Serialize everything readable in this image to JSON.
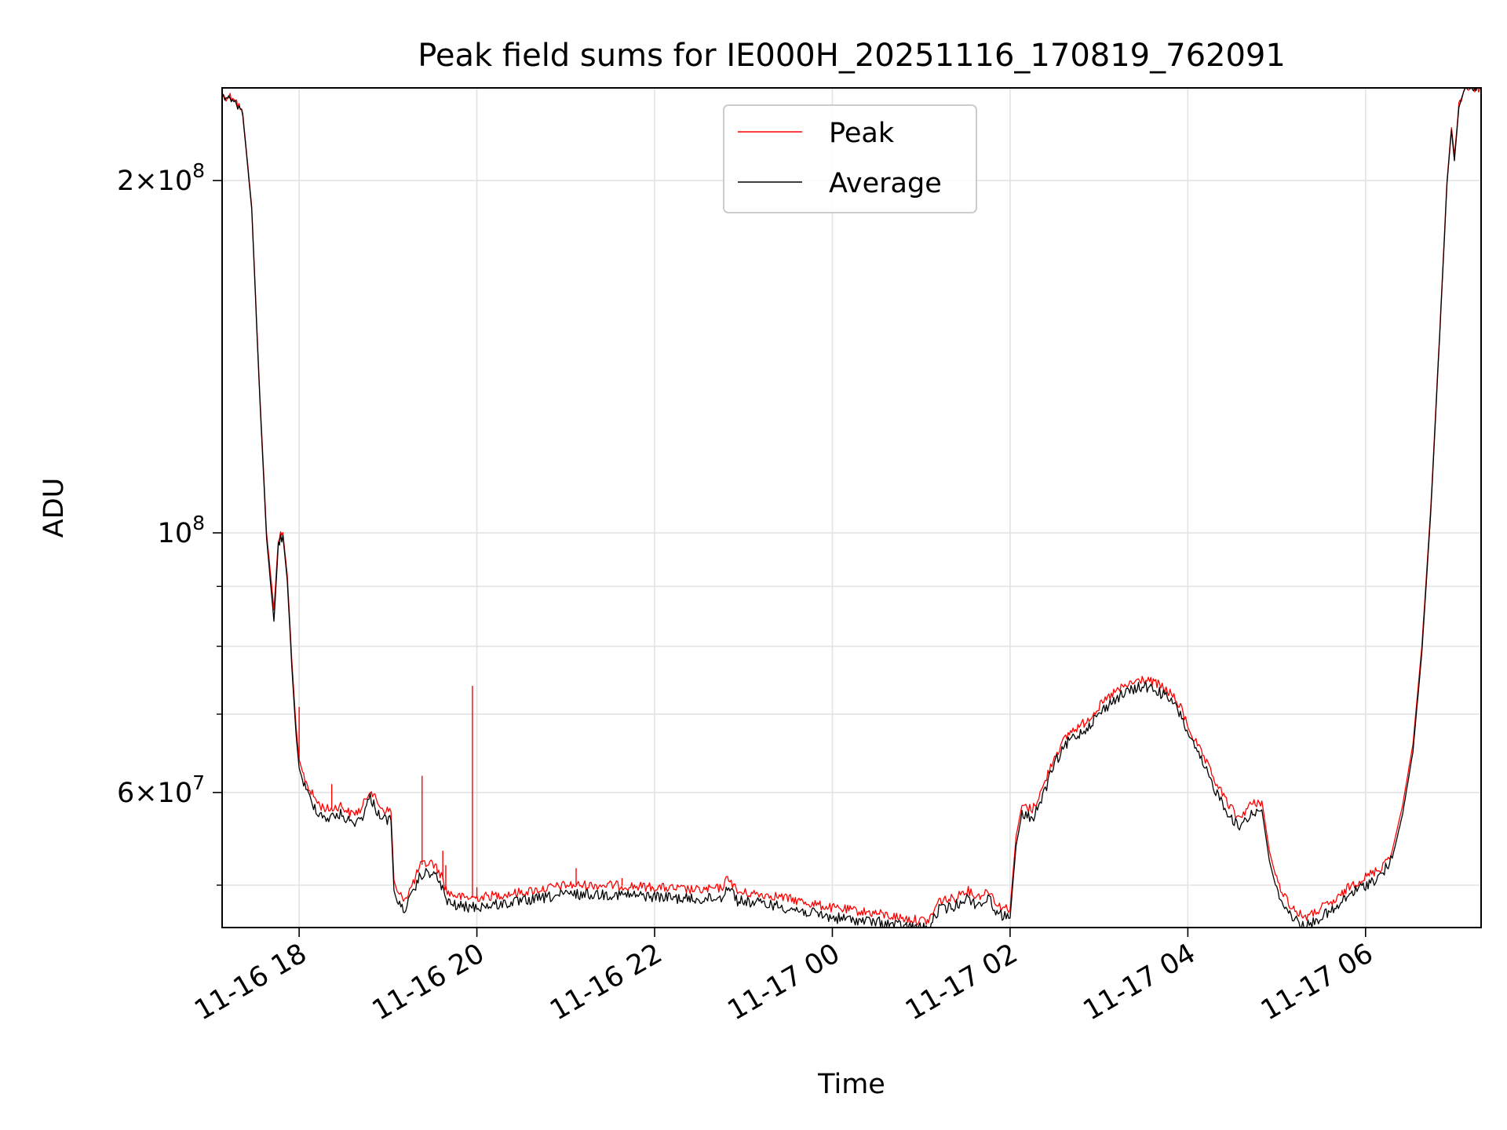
{
  "chart_data": {
    "type": "line",
    "title": "Peak field sums for IE000H_20251116_170819_762091",
    "xlabel": "Time",
    "ylabel": "ADU",
    "y_scale": "log",
    "grid": true,
    "legend_position": "upper-center",
    "xlim": [
      "2025-11-16 17:08",
      "2025-11-17 07:18"
    ],
    "ylim": [
      46000000,
      240000000
    ],
    "x_ticks": [
      {
        "value": "2025-11-16 18:00",
        "label": "11-16 18"
      },
      {
        "value": "2025-11-16 20:00",
        "label": "11-16 20"
      },
      {
        "value": "2025-11-16 22:00",
        "label": "11-16 22"
      },
      {
        "value": "2025-11-17 00:00",
        "label": "11-17 00"
      },
      {
        "value": "2025-11-17 02:00",
        "label": "11-17 02"
      },
      {
        "value": "2025-11-17 04:00",
        "label": "11-17 04"
      },
      {
        "value": "2025-11-17 06:00",
        "label": "11-17 06"
      }
    ],
    "y_ticks": [
      {
        "value": 60000000,
        "base": "6",
        "exponent": "7"
      },
      {
        "value": 100000000,
        "base": "",
        "exponent": "8"
      },
      {
        "value": 200000000,
        "base": "2",
        "exponent": "8"
      }
    ],
    "y_minor_ticks": [
      50000000,
      70000000,
      80000000,
      90000000
    ],
    "series": [
      {
        "name": "Peak",
        "color": "#ff0000",
        "points": [
          [
            "2025-11-16 17:08",
            236000000
          ],
          [
            "2025-11-16 17:16",
            236000000
          ],
          [
            "2025-11-16 17:22",
            228000000
          ],
          [
            "2025-11-16 17:28",
            190000000
          ],
          [
            "2025-11-16 17:33",
            135000000
          ],
          [
            "2025-11-16 17:38",
            100000000
          ],
          [
            "2025-11-16 17:43",
            86000000
          ],
          [
            "2025-11-16 17:46",
            99000000
          ],
          [
            "2025-11-16 17:49",
            100000000
          ],
          [
            "2025-11-16 17:52",
            92000000
          ],
          [
            "2025-11-16 17:55",
            78000000
          ],
          [
            "2025-11-16 17:58",
            68000000
          ],
          [
            "2025-11-16 18:00",
            64000000
          ],
          [
            "2025-11-16 18:03",
            62000000
          ],
          [
            "2025-11-16 18:08",
            60000000
          ],
          [
            "2025-11-16 18:14",
            58500000
          ],
          [
            "2025-11-16 18:20",
            58000000
          ],
          [
            "2025-11-16 18:28",
            58500000
          ],
          [
            "2025-11-16 18:35",
            57500000
          ],
          [
            "2025-11-16 18:42",
            58000000
          ],
          [
            "2025-11-16 18:48",
            60500000
          ],
          [
            "2025-11-16 18:52",
            59000000
          ],
          [
            "2025-11-16 18:57",
            58000000
          ],
          [
            "2025-11-16 19:02",
            57800000
          ],
          [
            "2025-11-16 19:04",
            50500000
          ],
          [
            "2025-11-16 19:07",
            49000000
          ],
          [
            "2025-11-16 19:12",
            48800000
          ],
          [
            "2025-11-16 19:17",
            50200000
          ],
          [
            "2025-11-16 19:22",
            52000000
          ],
          [
            "2025-11-16 19:30",
            52300000
          ],
          [
            "2025-11-16 19:36",
            51000000
          ],
          [
            "2025-11-16 19:40",
            49300000
          ],
          [
            "2025-11-16 19:50",
            48800000
          ],
          [
            "2025-11-16 20:00",
            48800000
          ],
          [
            "2025-11-16 20:30",
            49300000
          ],
          [
            "2025-11-16 21:00",
            50000000
          ],
          [
            "2025-11-16 21:30",
            50000000
          ],
          [
            "2025-11-16 22:00",
            49800000
          ],
          [
            "2025-11-16 22:30",
            49500000
          ],
          [
            "2025-11-16 22:45",
            49700000
          ],
          [
            "2025-11-16 22:50",
            50800000
          ],
          [
            "2025-11-16 22:56",
            49300000
          ],
          [
            "2025-11-16 23:20",
            49000000
          ],
          [
            "2025-11-16 23:40",
            48400000
          ],
          [
            "2025-11-17 00:00",
            47800000
          ],
          [
            "2025-11-17 00:30",
            47300000
          ],
          [
            "2025-11-17 00:50",
            46800000
          ],
          [
            "2025-11-17 01:05",
            46600000
          ],
          [
            "2025-11-17 01:12",
            48500000
          ],
          [
            "2025-11-17 01:22",
            48700000
          ],
          [
            "2025-11-17 01:30",
            49600000
          ],
          [
            "2025-11-17 01:38",
            48900000
          ],
          [
            "2025-11-17 01:46",
            49500000
          ],
          [
            "2025-11-17 01:52",
            48000000
          ],
          [
            "2025-11-17 02:00",
            47700000
          ],
          [
            "2025-11-17 02:04",
            55000000
          ],
          [
            "2025-11-17 02:08",
            58500000
          ],
          [
            "2025-11-17 02:15",
            58000000
          ],
          [
            "2025-11-17 02:22",
            60500000
          ],
          [
            "2025-11-17 02:30",
            64500000
          ],
          [
            "2025-11-17 02:40",
            67500000
          ],
          [
            "2025-11-17 02:50",
            68800000
          ],
          [
            "2025-11-17 03:00",
            71000000
          ],
          [
            "2025-11-17 03:10",
            73000000
          ],
          [
            "2025-11-17 03:20",
            74200000
          ],
          [
            "2025-11-17 03:30",
            75000000
          ],
          [
            "2025-11-17 03:40",
            74200000
          ],
          [
            "2025-11-17 03:48",
            73000000
          ],
          [
            "2025-11-17 03:55",
            71000000
          ],
          [
            "2025-11-17 04:02",
            67500000
          ],
          [
            "2025-11-17 04:10",
            64500000
          ],
          [
            "2025-11-17 04:18",
            61500000
          ],
          [
            "2025-11-17 04:26",
            59000000
          ],
          [
            "2025-11-17 04:34",
            57000000
          ],
          [
            "2025-11-17 04:42",
            58500000
          ],
          [
            "2025-11-17 04:50",
            59000000
          ],
          [
            "2025-11-17 04:55",
            53500000
          ],
          [
            "2025-11-17 05:00",
            50500000
          ],
          [
            "2025-11-17 05:08",
            48300000
          ],
          [
            "2025-11-17 05:15",
            47200000
          ],
          [
            "2025-11-17 05:22",
            47000000
          ],
          [
            "2025-11-17 05:30",
            47800000
          ],
          [
            "2025-11-17 05:40",
            48500000
          ],
          [
            "2025-11-17 05:50",
            50000000
          ],
          [
            "2025-11-17 06:00",
            50800000
          ],
          [
            "2025-11-17 06:10",
            51700000
          ],
          [
            "2025-11-17 06:18",
            53500000
          ],
          [
            "2025-11-17 06:25",
            58500000
          ],
          [
            "2025-11-17 06:32",
            66000000
          ],
          [
            "2025-11-17 06:38",
            80000000
          ],
          [
            "2025-11-17 06:44",
            105000000
          ],
          [
            "2025-11-17 06:50",
            148000000
          ],
          [
            "2025-11-17 06:55",
            200000000
          ],
          [
            "2025-11-17 06:58",
            222000000
          ],
          [
            "2025-11-17 07:00",
            210000000
          ],
          [
            "2025-11-17 07:03",
            232000000
          ],
          [
            "2025-11-17 07:07",
            240000000
          ],
          [
            "2025-11-17 07:18",
            240000000
          ]
        ],
        "spikes": [
          {
            "x": "2025-11-16 18:00",
            "y": 71000000
          },
          {
            "x": "2025-11-16 18:22",
            "y": 61000000
          },
          {
            "x": "2025-11-16 19:23",
            "y": 62000000
          },
          {
            "x": "2025-11-16 19:37",
            "y": 53500000
          },
          {
            "x": "2025-11-16 19:39",
            "y": 52000000
          },
          {
            "x": "2025-11-16 19:57",
            "y": 74000000
          },
          {
            "x": "2025-11-16 20:00",
            "y": 49800000
          },
          {
            "x": "2025-11-16 21:07",
            "y": 51700000
          },
          {
            "x": "2025-11-16 21:38",
            "y": 50700000
          }
        ]
      },
      {
        "name": "Average",
        "color": "#000000",
        "points": [
          [
            "2025-11-16 17:08",
            236000000
          ],
          [
            "2025-11-16 17:16",
            235000000
          ],
          [
            "2025-11-16 17:22",
            227000000
          ],
          [
            "2025-11-16 17:28",
            189000000
          ],
          [
            "2025-11-16 17:33",
            134000000
          ],
          [
            "2025-11-16 17:38",
            99000000
          ],
          [
            "2025-11-16 17:43",
            84000000
          ],
          [
            "2025-11-16 17:46",
            98000000
          ],
          [
            "2025-11-16 17:49",
            99500000
          ],
          [
            "2025-11-16 17:52",
            91000000
          ],
          [
            "2025-11-16 17:55",
            77000000
          ],
          [
            "2025-11-16 17:58",
            67000000
          ],
          [
            "2025-11-16 18:00",
            63000000
          ],
          [
            "2025-11-16 18:03",
            61000000
          ],
          [
            "2025-11-16 18:08",
            59000000
          ],
          [
            "2025-11-16 18:14",
            57500000
          ],
          [
            "2025-11-16 18:20",
            57000000
          ],
          [
            "2025-11-16 18:28",
            57500000
          ],
          [
            "2025-11-16 18:35",
            56500000
          ],
          [
            "2025-11-16 18:42",
            57000000
          ],
          [
            "2025-11-16 18:48",
            59500000
          ],
          [
            "2025-11-16 18:52",
            58000000
          ],
          [
            "2025-11-16 18:57",
            57000000
          ],
          [
            "2025-11-16 19:02",
            56800000
          ],
          [
            "2025-11-16 19:04",
            49500000
          ],
          [
            "2025-11-16 19:07",
            48000000
          ],
          [
            "2025-11-16 19:12",
            47800000
          ],
          [
            "2025-11-16 19:17",
            49200000
          ],
          [
            "2025-11-16 19:22",
            51000000
          ],
          [
            "2025-11-16 19:30",
            51300000
          ],
          [
            "2025-11-16 19:36",
            50000000
          ],
          [
            "2025-11-16 19:40",
            48300000
          ],
          [
            "2025-11-16 19:50",
            47900000
          ],
          [
            "2025-11-16 20:00",
            47900000
          ],
          [
            "2025-11-16 20:30",
            48400000
          ],
          [
            "2025-11-16 21:00",
            49100000
          ],
          [
            "2025-11-16 21:30",
            49100000
          ],
          [
            "2025-11-16 22:00",
            48900000
          ],
          [
            "2025-11-16 22:30",
            48600000
          ],
          [
            "2025-11-16 22:45",
            48800000
          ],
          [
            "2025-11-16 22:50",
            50000000
          ],
          [
            "2025-11-16 22:56",
            48500000
          ],
          [
            "2025-11-16 23:20",
            48100000
          ],
          [
            "2025-11-16 23:40",
            47500000
          ],
          [
            "2025-11-17 00:00",
            46900000
          ],
          [
            "2025-11-17 00:30",
            46500000
          ],
          [
            "2025-11-17 00:50",
            46100000
          ],
          [
            "2025-11-17 01:05",
            45900000
          ],
          [
            "2025-11-17 01:12",
            47700000
          ],
          [
            "2025-11-17 01:22",
            47900000
          ],
          [
            "2025-11-17 01:30",
            48800000
          ],
          [
            "2025-11-17 01:38",
            48100000
          ],
          [
            "2025-11-17 01:46",
            48700000
          ],
          [
            "2025-11-17 01:52",
            47200000
          ],
          [
            "2025-11-17 02:00",
            46900000
          ],
          [
            "2025-11-17 02:04",
            54000000
          ],
          [
            "2025-11-17 02:08",
            57500000
          ],
          [
            "2025-11-17 02:15",
            57000000
          ],
          [
            "2025-11-17 02:22",
            59500000
          ],
          [
            "2025-11-17 02:30",
            63500000
          ],
          [
            "2025-11-17 02:40",
            66500000
          ],
          [
            "2025-11-17 02:50",
            67800000
          ],
          [
            "2025-11-17 03:00",
            70000000
          ],
          [
            "2025-11-17 03:10",
            72000000
          ],
          [
            "2025-11-17 03:20",
            73200000
          ],
          [
            "2025-11-17 03:30",
            74000000
          ],
          [
            "2025-11-17 03:40",
            73200000
          ],
          [
            "2025-11-17 03:48",
            72000000
          ],
          [
            "2025-11-17 03:55",
            70000000
          ],
          [
            "2025-11-17 04:02",
            66500000
          ],
          [
            "2025-11-17 04:10",
            63500000
          ],
          [
            "2025-11-17 04:18",
            60500000
          ],
          [
            "2025-11-17 04:26",
            58000000
          ],
          [
            "2025-11-17 04:34",
            56000000
          ],
          [
            "2025-11-17 04:42",
            57500000
          ],
          [
            "2025-11-17 04:50",
            58000000
          ],
          [
            "2025-11-17 04:55",
            52500000
          ],
          [
            "2025-11-17 05:00",
            49500000
          ],
          [
            "2025-11-17 05:08",
            47400000
          ],
          [
            "2025-11-17 05:15",
            46400000
          ],
          [
            "2025-11-17 05:22",
            46200000
          ],
          [
            "2025-11-17 05:30",
            47000000
          ],
          [
            "2025-11-17 05:40",
            47700000
          ],
          [
            "2025-11-17 05:50",
            49200000
          ],
          [
            "2025-11-17 06:00",
            50000000
          ],
          [
            "2025-11-17 06:10",
            50900000
          ],
          [
            "2025-11-17 06:18",
            52700000
          ],
          [
            "2025-11-17 06:25",
            57500000
          ],
          [
            "2025-11-17 06:32",
            65000000
          ],
          [
            "2025-11-17 06:38",
            79000000
          ],
          [
            "2025-11-17 06:44",
            104000000
          ],
          [
            "2025-11-17 06:50",
            147000000
          ],
          [
            "2025-11-17 06:55",
            199000000
          ],
          [
            "2025-11-17 06:58",
            221000000
          ],
          [
            "2025-11-17 07:00",
            208000000
          ],
          [
            "2025-11-17 07:03",
            231000000
          ],
          [
            "2025-11-17 07:07",
            240000000
          ],
          [
            "2025-11-17 07:18",
            240000000
          ]
        ]
      }
    ]
  }
}
